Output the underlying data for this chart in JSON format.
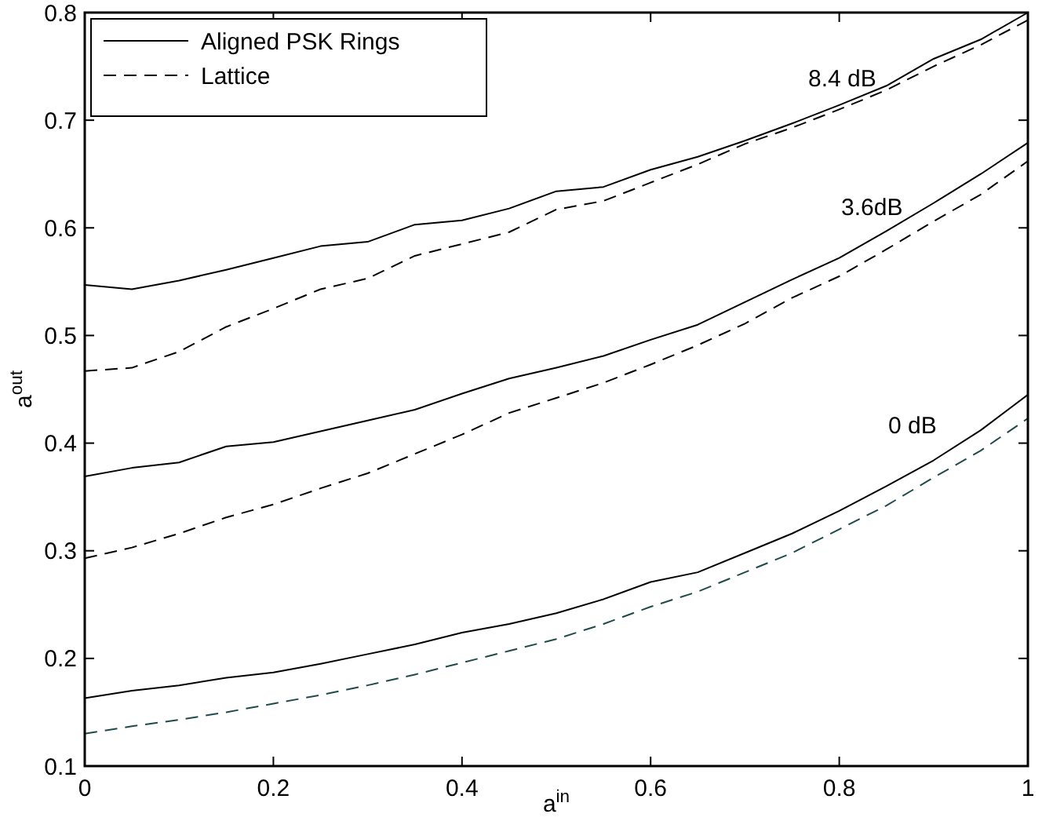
{
  "chart_data": {
    "type": "line",
    "xlabel": "a$^{in}$",
    "ylabel": "a$^{out}$",
    "x": [
      0,
      0.05,
      0.1,
      0.15,
      0.2,
      0.25,
      0.3,
      0.35,
      0.4,
      0.45,
      0.5,
      0.55,
      0.6,
      0.65,
      0.7,
      0.75,
      0.8,
      0.85,
      0.9,
      0.95,
      1
    ],
    "series": [
      {
        "name": "Aligned PSK Rings",
        "color": "#000000",
        "line_style": "solid",
        "values": [
          0.547,
          0.543,
          0.551,
          0.561,
          0.572,
          0.583,
          0.587,
          0.603,
          0.607,
          0.618,
          0.634,
          0.638,
          0.654,
          0.666,
          0.681,
          0.697,
          0.714,
          0.732,
          0.757,
          0.775,
          0.8
        ]
      },
      {
        "name": "Lattice",
        "color": "#000000",
        "line_style": "dashed",
        "values": [
          0.467,
          0.47,
          0.485,
          0.508,
          0.525,
          0.543,
          0.553,
          0.574,
          0.585,
          0.596,
          0.617,
          0.625,
          0.642,
          0.659,
          0.678,
          0.693,
          0.71,
          0.728,
          0.75,
          0.77,
          0.793
        ]
      },
      {
        "color": "#000000",
        "line_style": "solid",
        "values": [
          0.369,
          0.377,
          0.382,
          0.397,
          0.401,
          0.411,
          0.421,
          0.431,
          0.446,
          0.46,
          0.47,
          0.481,
          0.496,
          0.51,
          0.531,
          0.552,
          0.572,
          0.597,
          0.623,
          0.65,
          0.679
        ]
      },
      {
        "color": "#000000",
        "line_style": "dashed",
        "values": [
          0.293,
          0.303,
          0.316,
          0.331,
          0.343,
          0.358,
          0.372,
          0.39,
          0.408,
          0.428,
          0.442,
          0.456,
          0.473,
          0.491,
          0.511,
          0.535,
          0.555,
          0.58,
          0.606,
          0.631,
          0.662
        ]
      },
      {
        "color": "#000000",
        "line_style": "solid",
        "values": [
          0.163,
          0.17,
          0.175,
          0.182,
          0.187,
          0.195,
          0.204,
          0.213,
          0.224,
          0.232,
          0.242,
          0.255,
          0.271,
          0.28,
          0.298,
          0.316,
          0.337,
          0.36,
          0.384,
          0.412,
          0.445
        ]
      },
      {
        "color": "#1f4a4a",
        "line_style": "dashed",
        "values": [
          0.13,
          0.137,
          0.143,
          0.15,
          0.158,
          0.166,
          0.175,
          0.185,
          0.196,
          0.207,
          0.218,
          0.232,
          0.248,
          0.262,
          0.28,
          0.298,
          0.32,
          0.342,
          0.368,
          0.393,
          0.423
        ]
      }
    ],
    "annotations": [
      "8.4 dB",
      "3.6dB",
      "0 dB"
    ],
    "xlim": [
      0,
      1
    ],
    "xticks": [
      0,
      0.2,
      0.4,
      0.6,
      0.8,
      1
    ],
    "ylim": [
      0.1,
      0.8
    ],
    "yticks": [
      0.1,
      0.2,
      0.3,
      0.4,
      0.5,
      0.6,
      0.7,
      0.8
    ],
    "grid": false,
    "legend": "top left",
    "marker": "none"
  }
}
